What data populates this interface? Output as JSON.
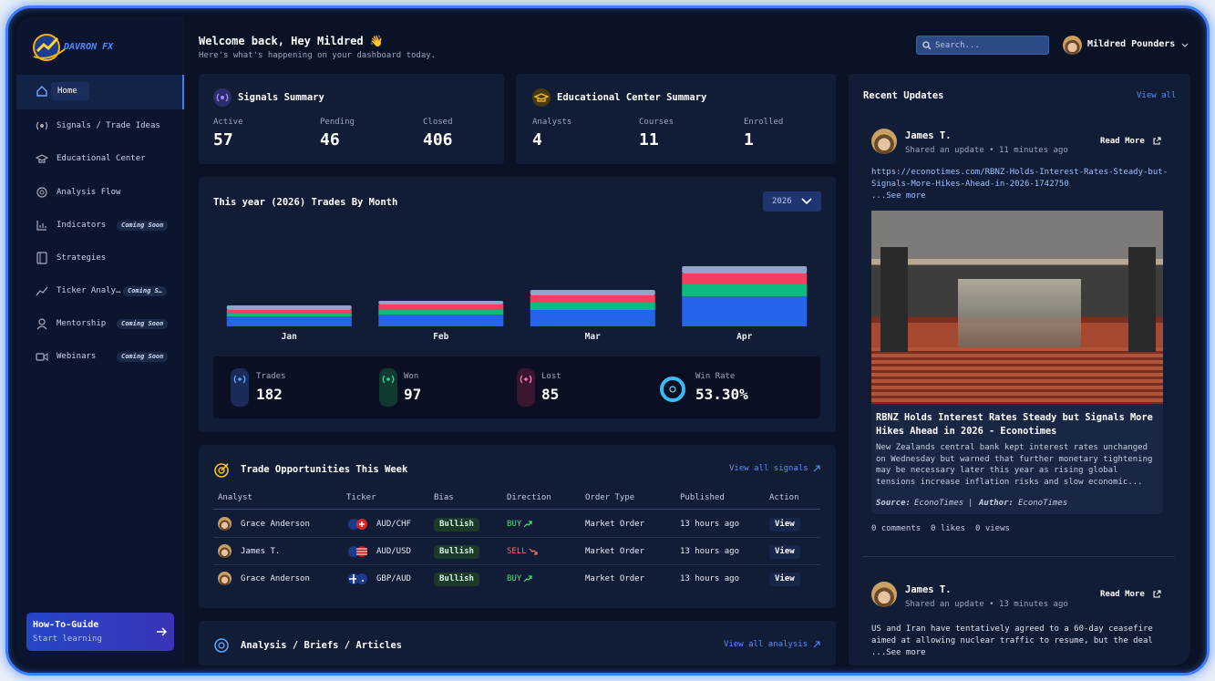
{
  "brand": "DAVRON FX",
  "header": {
    "greeting": "Welcome back, Hey Mildred 👋",
    "subtitle": "Here's what's happening on your dashboard today.",
    "search_placeholder": "Search...",
    "user_name": "Mildred Pounders"
  },
  "sidebar": {
    "items": [
      {
        "label": "Home"
      },
      {
        "label": "Signals / Trade Ideas"
      },
      {
        "label": "Educational Center"
      },
      {
        "label": "Analysis Flow"
      },
      {
        "label": "Indicators",
        "badge": "Coming Soon"
      },
      {
        "label": "Strategies"
      },
      {
        "label": "Ticker Analy…",
        "badge": "Coming S…"
      },
      {
        "label": "Mentorship",
        "badge": "Coming Soon"
      },
      {
        "label": "Webinars",
        "badge": "Coming Soon"
      }
    ],
    "guide": {
      "title": "How-To-Guide",
      "subtitle": "Start learning"
    }
  },
  "signals_summary": {
    "title": "Signals Summary",
    "stats": [
      {
        "label": "Active",
        "value": 57
      },
      {
        "label": "Pending",
        "value": 46
      },
      {
        "label": "Closed",
        "value": 406
      }
    ]
  },
  "education_summary": {
    "title": "Educational Center Summary",
    "stats": [
      {
        "label": "Analysts",
        "value": 4
      },
      {
        "label": "Courses",
        "value": 11
      },
      {
        "label": "Enrolled",
        "value": 1
      }
    ]
  },
  "trades": {
    "title": "This year (2026) Trades By Month",
    "year": "2026",
    "chart_data": {
      "type": "bar",
      "stacked": true,
      "categories": [
        "Jan",
        "Feb",
        "Mar",
        "Apr"
      ],
      "series": [
        {
          "color": "#2563eb",
          "values": [
            11,
            13,
            18,
            33
          ]
        },
        {
          "color": "#10b981",
          "values": [
            3,
            5,
            8,
            13
          ]
        },
        {
          "color": "#f43f5e",
          "values": [
            4,
            6,
            8,
            12
          ]
        },
        {
          "color": "#94a3c8",
          "values": [
            5,
            4,
            6,
            8
          ]
        }
      ],
      "ylim": [
        0,
        120
      ]
    },
    "stats": [
      {
        "label": "Trades",
        "value": 182
      },
      {
        "label": "Won",
        "value": 97
      },
      {
        "label": "Lost",
        "value": 85
      },
      {
        "label": "Win Rate",
        "value": "53.30%"
      }
    ]
  },
  "opportunities": {
    "title": "Trade Opportunities This Week",
    "view_all": "View all signals",
    "columns": [
      "Analyst",
      "Ticker",
      "Bias",
      "Direction",
      "Order Type",
      "Published",
      "Action"
    ],
    "rows": [
      [
        "Grace Anderson",
        "AUD/CHF",
        "Bullish",
        "BUY",
        "Market Order",
        "13 hours ago",
        "View"
      ],
      [
        "James T.",
        "AUD/USD",
        "Bullish",
        "SELL",
        "Market Order",
        "13 hours ago",
        "View"
      ],
      [
        "Grace Anderson",
        "GBP/AUD",
        "Bullish",
        "BUY",
        "Market Order",
        "13 hours ago",
        "View"
      ]
    ]
  },
  "analysis": {
    "title": "Analysis / Briefs / Articles",
    "view_all": "View all analysis"
  },
  "updates": {
    "title": "Recent Updates",
    "view_all": "View all",
    "posts": [
      {
        "author": "James T.",
        "meta": "Shared an update • 11 minutes ago",
        "read_more": "Read More",
        "link": "https://econotimes.com/RBNZ-Holds-Interest-Rates-Steady-but-Signals-More-Hikes-Ahead-in-2026-1742750",
        "see_more": "...See more",
        "headline": "RBNZ Holds Interest Rates Steady but Signals More Hikes Ahead in 2026 - Econotimes",
        "summary": "New Zealands central bank kept interest rates unchanged on Wednesday but warned that further monetary tightening may be necessary later this year as rising global tensions increase inflation risks and slow economic...",
        "source_label": "Source:",
        "source": "EconoTimes",
        "author_label": "Author:",
        "article_author": "EconoTimes",
        "stats": [
          "0 comments",
          "0 likes",
          "0 views"
        ]
      },
      {
        "author": "James T.",
        "meta": "Shared an update • 13 minutes ago",
        "read_more": "Read More",
        "text": "US and Iran have tentatively agreed to a 60-day ceasefire aimed at allowing nuclear traffic to resume, but the deal",
        "see_more": "...See more"
      }
    ]
  }
}
